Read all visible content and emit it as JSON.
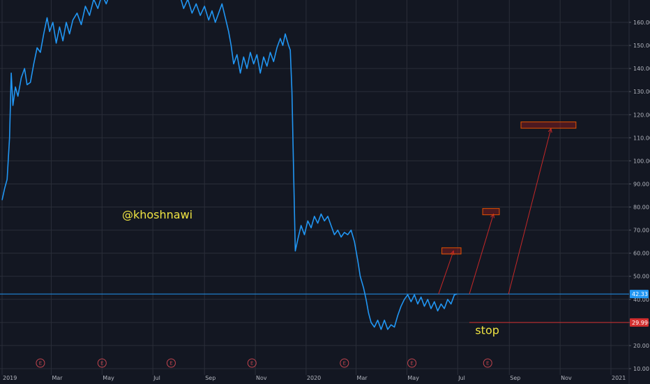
{
  "chart_data": {
    "type": "line",
    "title": "",
    "xlabel": "",
    "ylabel": "",
    "ylim": [
      8,
      175
    ],
    "yticks": [
      10,
      20,
      30,
      40,
      50,
      60,
      70,
      80,
      90,
      100,
      110,
      120,
      130,
      140,
      150,
      160
    ],
    "xticks": [
      {
        "label": "2019",
        "date": "2019-01-01"
      },
      {
        "label": "Mar",
        "date": "2019-03-01"
      },
      {
        "label": "May",
        "date": "2019-05-01"
      },
      {
        "label": "Jul",
        "date": "2019-07-01"
      },
      {
        "label": "Sep",
        "date": "2019-09-01"
      },
      {
        "label": "Nov",
        "date": "2019-11-01"
      },
      {
        "label": "2020",
        "date": "2020-01-01"
      },
      {
        "label": "Mar",
        "date": "2020-03-01"
      },
      {
        "label": "May",
        "date": "2020-05-01"
      },
      {
        "label": "Jul",
        "date": "2020-07-01"
      },
      {
        "label": "Sep",
        "date": "2020-09-01"
      },
      {
        "label": "Nov",
        "date": "2020-11-01"
      },
      {
        "label": "2021",
        "date": "2021-01-01"
      }
    ],
    "grid": true,
    "series": [
      {
        "name": "",
        "color": "#2196f3",
        "points": [
          [
            "2019-01-01",
            83
          ],
          [
            "2019-01-04",
            88
          ],
          [
            "2019-01-07",
            92
          ],
          [
            "2019-01-10",
            110
          ],
          [
            "2019-01-12",
            138
          ],
          [
            "2019-01-14",
            124
          ],
          [
            "2019-01-17",
            132
          ],
          [
            "2019-01-20",
            128
          ],
          [
            "2019-01-24",
            136
          ],
          [
            "2019-01-28",
            140
          ],
          [
            "2019-01-31",
            133
          ],
          [
            "2019-02-04",
            134
          ],
          [
            "2019-02-08",
            142
          ],
          [
            "2019-02-12",
            149
          ],
          [
            "2019-02-16",
            147
          ],
          [
            "2019-02-20",
            155
          ],
          [
            "2019-02-24",
            162
          ],
          [
            "2019-02-27",
            156
          ],
          [
            "2019-03-03",
            160
          ],
          [
            "2019-03-07",
            151
          ],
          [
            "2019-03-11",
            158
          ],
          [
            "2019-03-15",
            152
          ],
          [
            "2019-03-19",
            160
          ],
          [
            "2019-03-23",
            155
          ],
          [
            "2019-03-27",
            161
          ],
          [
            "2019-04-01",
            164
          ],
          [
            "2019-04-06",
            159
          ],
          [
            "2019-04-11",
            167
          ],
          [
            "2019-04-16",
            163
          ],
          [
            "2019-04-21",
            170
          ],
          [
            "2019-04-26",
            166
          ],
          [
            "2019-05-01",
            172
          ],
          [
            "2019-05-06",
            168
          ],
          [
            "2019-05-11",
            173
          ],
          [
            "2019-05-16",
            170
          ],
          [
            "2019-05-21",
            174
          ],
          [
            "2019-05-26",
            171
          ],
          [
            "2019-06-01",
            175
          ],
          [
            "2019-06-08",
            172
          ],
          [
            "2019-06-15",
            176
          ],
          [
            "2019-06-22",
            173
          ],
          [
            "2019-06-29",
            176
          ],
          [
            "2019-07-06",
            174
          ],
          [
            "2019-07-13",
            176
          ],
          [
            "2019-07-20",
            175
          ],
          [
            "2019-07-27",
            174
          ],
          [
            "2019-08-03",
            171
          ],
          [
            "2019-08-07",
            166
          ],
          [
            "2019-08-12",
            170
          ],
          [
            "2019-08-17",
            164
          ],
          [
            "2019-08-22",
            168
          ],
          [
            "2019-08-27",
            163
          ],
          [
            "2019-09-01",
            167
          ],
          [
            "2019-09-06",
            161
          ],
          [
            "2019-09-10",
            165
          ],
          [
            "2019-09-14",
            160
          ],
          [
            "2019-09-18",
            164
          ],
          [
            "2019-09-22",
            168
          ],
          [
            "2019-09-26",
            162
          ],
          [
            "2019-09-30",
            156
          ],
          [
            "2019-10-03",
            150
          ],
          [
            "2019-10-06",
            142
          ],
          [
            "2019-10-10",
            146
          ],
          [
            "2019-10-14",
            138
          ],
          [
            "2019-10-18",
            145
          ],
          [
            "2019-10-22",
            140
          ],
          [
            "2019-10-26",
            147
          ],
          [
            "2019-10-30",
            142
          ],
          [
            "2019-11-03",
            146
          ],
          [
            "2019-11-07",
            138
          ],
          [
            "2019-11-11",
            145
          ],
          [
            "2019-11-15",
            141
          ],
          [
            "2019-11-19",
            147
          ],
          [
            "2019-11-23",
            143
          ],
          [
            "2019-11-27",
            149
          ],
          [
            "2019-12-01",
            153
          ],
          [
            "2019-12-04",
            150
          ],
          [
            "2019-12-07",
            155
          ],
          [
            "2019-12-11",
            150
          ],
          [
            "2019-12-13",
            148
          ],
          [
            "2019-12-15",
            130
          ],
          [
            "2019-12-17",
            95
          ],
          [
            "2019-12-19",
            61
          ],
          [
            "2019-12-22",
            66
          ],
          [
            "2019-12-26",
            72
          ],
          [
            "2019-12-30",
            68
          ],
          [
            "2020-01-03",
            74
          ],
          [
            "2020-01-07",
            71
          ],
          [
            "2020-01-11",
            76
          ],
          [
            "2020-01-15",
            73
          ],
          [
            "2020-01-19",
            77
          ],
          [
            "2020-01-23",
            74
          ],
          [
            "2020-01-27",
            76
          ],
          [
            "2020-01-31",
            72
          ],
          [
            "2020-02-04",
            68
          ],
          [
            "2020-02-08",
            70
          ],
          [
            "2020-02-12",
            67
          ],
          [
            "2020-02-16",
            69
          ],
          [
            "2020-02-20",
            68
          ],
          [
            "2020-02-24",
            70
          ],
          [
            "2020-02-28",
            65
          ],
          [
            "2020-03-03",
            57
          ],
          [
            "2020-03-06",
            50
          ],
          [
            "2020-03-10",
            45
          ],
          [
            "2020-03-13",
            40
          ],
          [
            "2020-03-16",
            34
          ],
          [
            "2020-03-19",
            30
          ],
          [
            "2020-03-23",
            28
          ],
          [
            "2020-03-27",
            31
          ],
          [
            "2020-03-31",
            27
          ],
          [
            "2020-04-04",
            31
          ],
          [
            "2020-04-08",
            27
          ],
          [
            "2020-04-12",
            29
          ],
          [
            "2020-04-16",
            28
          ],
          [
            "2020-04-20",
            33
          ],
          [
            "2020-04-24",
            37
          ],
          [
            "2020-04-28",
            40
          ],
          [
            "2020-05-02",
            42
          ],
          [
            "2020-05-06",
            39
          ],
          [
            "2020-05-10",
            42
          ],
          [
            "2020-05-14",
            38
          ],
          [
            "2020-05-18",
            41
          ],
          [
            "2020-05-22",
            37
          ],
          [
            "2020-05-26",
            40
          ],
          [
            "2020-05-30",
            36
          ],
          [
            "2020-06-03",
            39
          ],
          [
            "2020-06-07",
            35
          ],
          [
            "2020-06-11",
            38
          ],
          [
            "2020-06-15",
            36
          ],
          [
            "2020-06-19",
            40
          ],
          [
            "2020-06-23",
            38
          ],
          [
            "2020-06-27",
            42
          ],
          [
            "2020-06-30",
            42.3
          ]
        ]
      }
    ],
    "horizontal_lines": [
      {
        "value": 42.33,
        "label": "42.33",
        "color": "#2196f3"
      },
      {
        "value": 29.99,
        "label": "29.99",
        "color": "#d32f2f",
        "start": "2020-07-15"
      }
    ],
    "target_boxes": [
      {
        "x1": "2020-06-12",
        "x2": "2020-07-05",
        "y": 61,
        "color": "#d32f2f"
      },
      {
        "x1": "2020-07-31",
        "x2": "2020-08-20",
        "y": 78,
        "color": "#d32f2f"
      },
      {
        "x1": "2020-09-15",
        "x2": "2020-11-20",
        "y": 115.5,
        "color": "#d32f2f"
      }
    ],
    "arrows": [
      {
        "from": [
          "2020-06-08",
          42.3
        ],
        "to": [
          "2020-06-26",
          61
        ]
      },
      {
        "from": [
          "2020-07-15",
          42.3
        ],
        "to": [
          "2020-08-13",
          77
        ]
      },
      {
        "from": [
          "2020-08-31",
          42.3
        ],
        "to": [
          "2020-10-21",
          114
        ]
      }
    ],
    "earnings_markers": [
      "2019-02-16",
      "2019-05-01",
      "2019-07-23",
      "2019-10-28",
      "2020-02-16",
      "2020-05-07",
      "2020-08-06"
    ],
    "earnings_label": "E",
    "annotations": [
      {
        "text": "@khoshnawi",
        "at": [
          "2019-05-25",
          75
        ]
      },
      {
        "text": "stop",
        "at": [
          "2020-07-22",
          25
        ]
      }
    ]
  },
  "colors": {
    "background": "#131722",
    "grid": "#2a2e39",
    "axis_text": "#b2b5be"
  }
}
